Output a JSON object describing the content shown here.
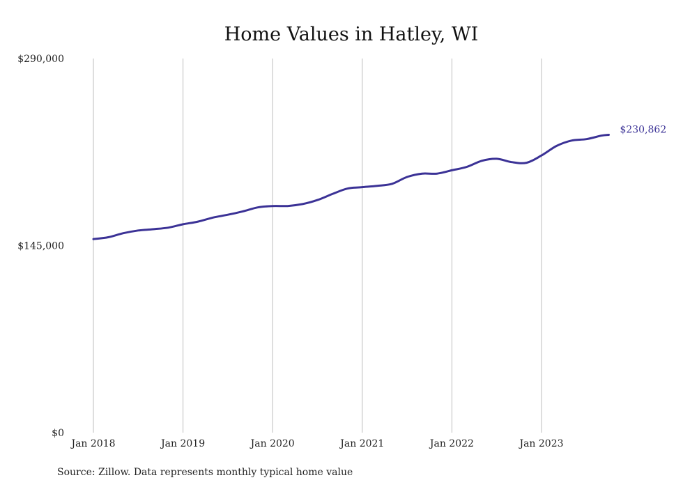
{
  "chart_data": {
    "type": "line",
    "title": "Home Values in Hatley, WI",
    "xlabel": "",
    "ylabel": "",
    "ylim": [
      0,
      290000
    ],
    "y_ticks": [
      {
        "value": 0,
        "label": "$0"
      },
      {
        "value": 145000,
        "label": "$145,000"
      },
      {
        "value": 290000,
        "label": "$290,000"
      }
    ],
    "x_ticks": [
      {
        "value": "2018-01",
        "label": "Jan 2018"
      },
      {
        "value": "2019-01",
        "label": "Jan 2019"
      },
      {
        "value": "2020-01",
        "label": "Jan 2020"
      },
      {
        "value": "2021-01",
        "label": "Jan 2021"
      },
      {
        "value": "2022-01",
        "label": "Jan 2022"
      },
      {
        "value": "2023-01",
        "label": "Jan 2023"
      }
    ],
    "grid": "vertical",
    "end_label": "$230,862",
    "series": [
      {
        "color": "#3b3296",
        "points": [
          {
            "x": "2018-01",
            "y": 150000
          },
          {
            "x": "2018-03",
            "y": 151500
          },
          {
            "x": "2018-05",
            "y": 154600
          },
          {
            "x": "2018-07",
            "y": 156700
          },
          {
            "x": "2018-09",
            "y": 157700
          },
          {
            "x": "2018-11",
            "y": 158900
          },
          {
            "x": "2019-01",
            "y": 161500
          },
          {
            "x": "2019-03",
            "y": 163600
          },
          {
            "x": "2019-05",
            "y": 166700
          },
          {
            "x": "2019-07",
            "y": 168900
          },
          {
            "x": "2019-09",
            "y": 171500
          },
          {
            "x": "2019-11",
            "y": 174600
          },
          {
            "x": "2020-01",
            "y": 175700
          },
          {
            "x": "2020-03",
            "y": 175700
          },
          {
            "x": "2020-05",
            "y": 177200
          },
          {
            "x": "2020-07",
            "y": 180300
          },
          {
            "x": "2020-09",
            "y": 185000
          },
          {
            "x": "2020-11",
            "y": 189200
          },
          {
            "x": "2021-01",
            "y": 190300
          },
          {
            "x": "2021-03",
            "y": 191300
          },
          {
            "x": "2021-05",
            "y": 192900
          },
          {
            "x": "2021-07",
            "y": 198200
          },
          {
            "x": "2021-09",
            "y": 200800
          },
          {
            "x": "2021-11",
            "y": 200800
          },
          {
            "x": "2022-01",
            "y": 203400
          },
          {
            "x": "2022-03",
            "y": 206000
          },
          {
            "x": "2022-05",
            "y": 210700
          },
          {
            "x": "2022-07",
            "y": 212300
          },
          {
            "x": "2022-09",
            "y": 209700
          },
          {
            "x": "2022-11",
            "y": 209200
          },
          {
            "x": "2023-01",
            "y": 214900
          },
          {
            "x": "2023-03",
            "y": 222200
          },
          {
            "x": "2023-05",
            "y": 226400
          },
          {
            "x": "2023-07",
            "y": 227500
          },
          {
            "x": "2023-09",
            "y": 230200
          },
          {
            "x": "2023-10",
            "y": 230862
          }
        ]
      }
    ]
  },
  "source_note": "Source: Zillow. Data represents monthly typical home value"
}
